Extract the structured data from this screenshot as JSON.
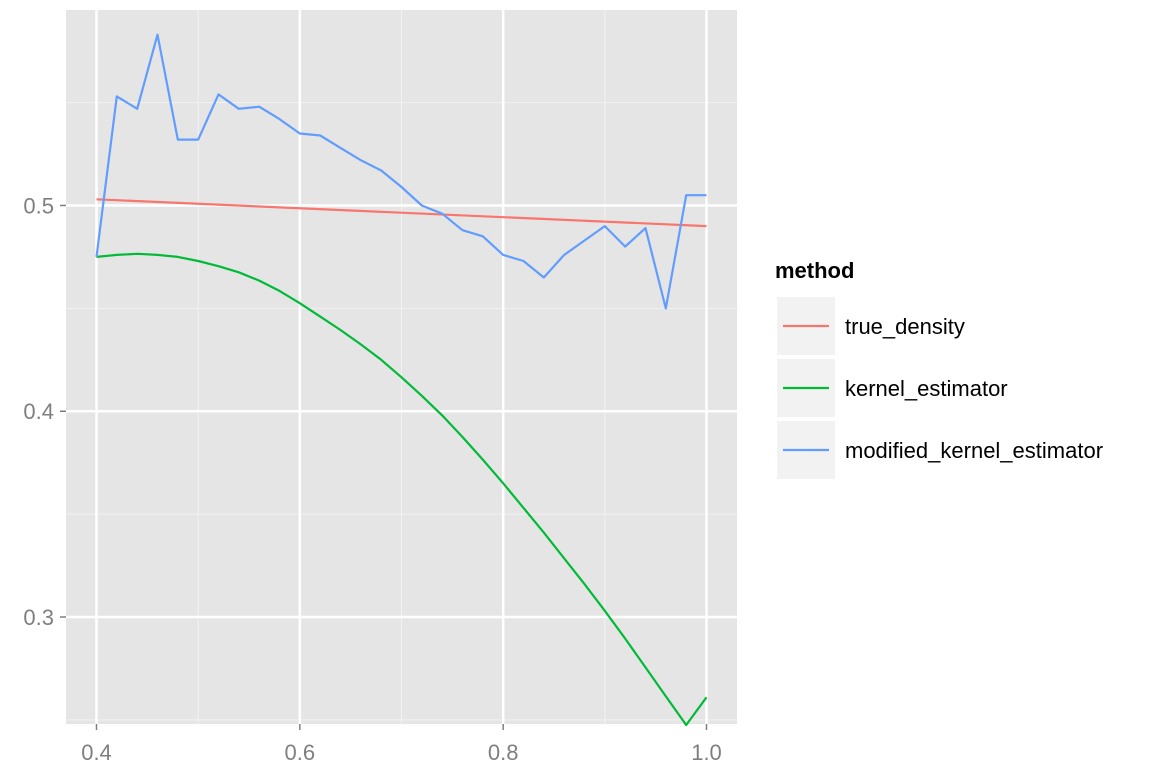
{
  "chart_data": {
    "type": "line",
    "title": "",
    "xlabel": "",
    "ylabel": "",
    "xlim": [
      0.37,
      1.03
    ],
    "ylim": [
      0.248,
      0.595
    ],
    "x_ticks": [
      0.4,
      0.6,
      0.8,
      1.0
    ],
    "x_tick_labels": [
      "0.4",
      "0.6",
      "0.8",
      "1.0"
    ],
    "y_ticks": [
      0.3,
      0.4,
      0.5
    ],
    "y_tick_labels": [
      "0.3",
      "0.4",
      "0.5"
    ],
    "grid": true,
    "legend": {
      "title": "method",
      "position": "right"
    },
    "series": [
      {
        "name": "true_density",
        "color": "#F8766D",
        "x": [
          0.4,
          1.0
        ],
        "y": [
          0.503,
          0.49
        ]
      },
      {
        "name": "kernel_estimator",
        "color": "#00BA38",
        "x": [
          0.4,
          0.42,
          0.44,
          0.46,
          0.48,
          0.5,
          0.52,
          0.54,
          0.56,
          0.58,
          0.6,
          0.62,
          0.64,
          0.66,
          0.68,
          0.7,
          0.72,
          0.74,
          0.76,
          0.78,
          0.8,
          0.82,
          0.84,
          0.86,
          0.88,
          0.9,
          0.92,
          0.94,
          0.96,
          0.98,
          1.0
        ],
        "y": [
          0.475,
          0.476,
          0.4765,
          0.476,
          0.475,
          0.473,
          0.4705,
          0.4675,
          0.4635,
          0.4585,
          0.4525,
          0.446,
          0.4395,
          0.4325,
          0.425,
          0.4165,
          0.4075,
          0.398,
          0.3875,
          0.3765,
          0.365,
          0.353,
          0.341,
          0.3285,
          0.316,
          0.303,
          0.2895,
          0.2755,
          0.2615,
          0.2475,
          0.261
        ]
      },
      {
        "name": "modified_kernel_estimator",
        "color": "#619CFF",
        "x": [
          0.4,
          0.42,
          0.44,
          0.46,
          0.48,
          0.5,
          0.52,
          0.54,
          0.56,
          0.58,
          0.6,
          0.62,
          0.64,
          0.66,
          0.68,
          0.7,
          0.72,
          0.74,
          0.76,
          0.78,
          0.8,
          0.82,
          0.84,
          0.86,
          0.88,
          0.9,
          0.92,
          0.94,
          0.96,
          0.98,
          1.0
        ],
        "y": [
          0.475,
          0.553,
          0.547,
          0.583,
          0.532,
          0.532,
          0.554,
          0.547,
          0.548,
          0.542,
          0.535,
          0.534,
          0.528,
          0.522,
          0.517,
          0.509,
          0.5,
          0.496,
          0.488,
          0.485,
          0.476,
          0.473,
          0.465,
          0.476,
          0.483,
          0.49,
          0.48,
          0.489,
          0.45,
          0.505,
          0.505
        ]
      }
    ]
  }
}
